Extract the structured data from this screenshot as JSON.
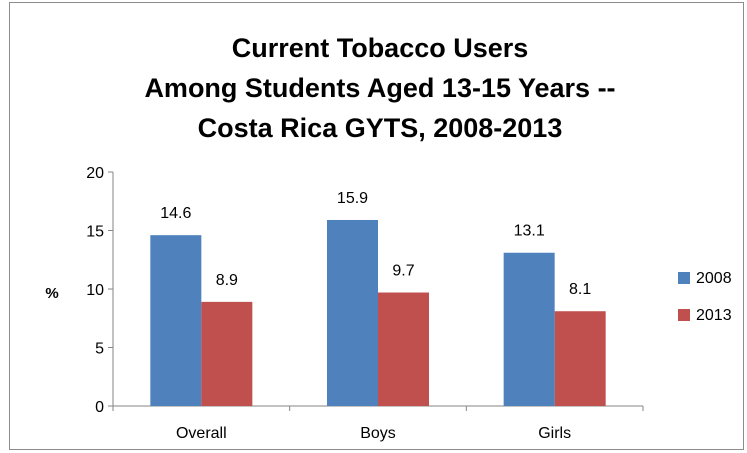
{
  "chart_data": {
    "type": "bar",
    "title": [
      "Current Tobacco Users",
      "Among Students Aged 13-15 Years --",
      "Costa Rica GYTS, 2008-2013"
    ],
    "xlabel": "",
    "ylabel": "%",
    "categories": [
      "Overall",
      "Boys",
      "Girls"
    ],
    "series": [
      {
        "name": "2008",
        "values": [
          14.6,
          15.9,
          13.1
        ],
        "color": "#4f81bd"
      },
      {
        "name": "2013",
        "values": [
          8.9,
          9.7,
          8.1
        ],
        "color": "#c0504d"
      }
    ],
    "ylim": [
      0,
      20
    ],
    "yticks": [
      0,
      5,
      10,
      15,
      20
    ],
    "data_labels": true,
    "grid": false,
    "legend_position": "right"
  }
}
